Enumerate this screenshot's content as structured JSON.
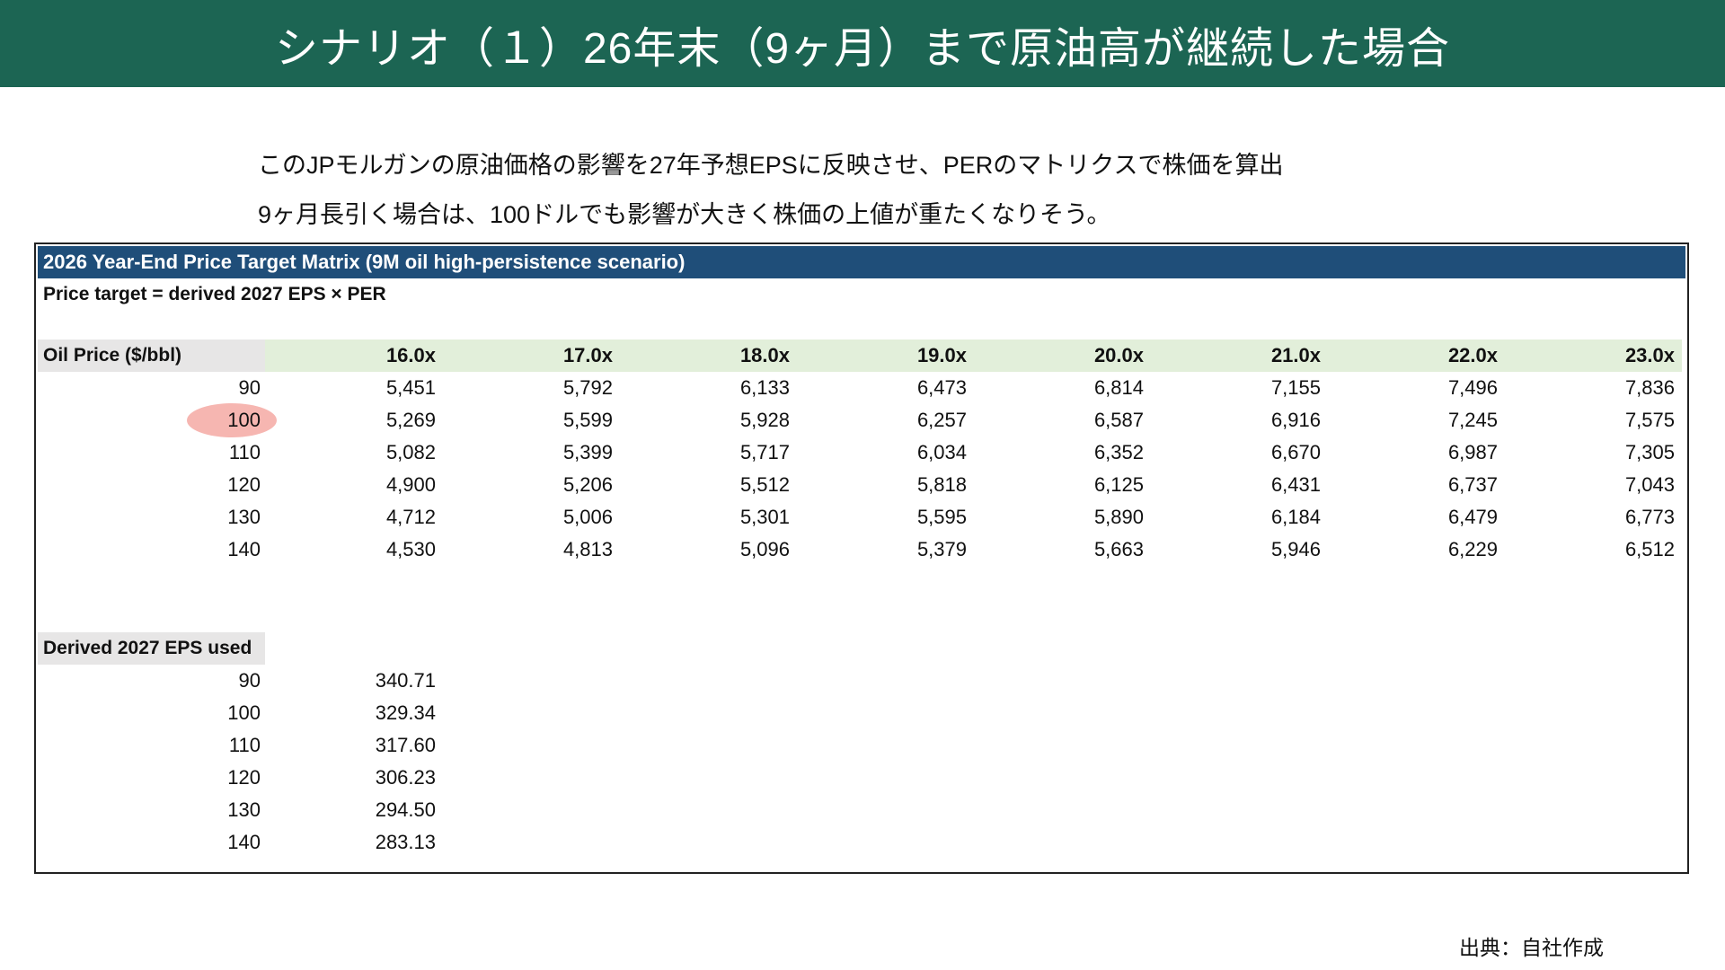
{
  "title": "シナリオ（１）26年末（9ヶ月）まで原油高が継続した場合",
  "description": [
    "このJPモルガンの原油価格の影響を27年予想EPSに反映させ、PERのマトリクスで株価を算出",
    "9ヶ月長引く場合は、100ドルでも影響が大きく株価の上値が重たくなりそう。"
  ],
  "table": {
    "title": "2026 Year-End Price Target Matrix (9M oil high-persistence scenario)",
    "formula": "Price target = derived 2027 EPS × PER",
    "row_header": "Oil Price ($/bbl)",
    "columns": [
      "16.0x",
      "17.0x",
      "18.0x",
      "19.0x",
      "20.0x",
      "21.0x",
      "22.0x",
      "23.0x"
    ],
    "highlighted_oil_price": "100",
    "rows": [
      {
        "oil": "90",
        "values": [
          "5,451",
          "5,792",
          "6,133",
          "6,473",
          "6,814",
          "7,155",
          "7,496",
          "7,836"
        ]
      },
      {
        "oil": "100",
        "values": [
          "5,269",
          "5,599",
          "5,928",
          "6,257",
          "6,587",
          "6,916",
          "7,245",
          "7,575"
        ]
      },
      {
        "oil": "110",
        "values": [
          "5,082",
          "5,399",
          "5,717",
          "6,034",
          "6,352",
          "6,670",
          "6,987",
          "7,305"
        ]
      },
      {
        "oil": "120",
        "values": [
          "4,900",
          "5,206",
          "5,512",
          "5,818",
          "6,125",
          "6,431",
          "6,737",
          "7,043"
        ]
      },
      {
        "oil": "130",
        "values": [
          "4,712",
          "5,006",
          "5,301",
          "5,595",
          "5,890",
          "6,184",
          "6,479",
          "6,773"
        ]
      },
      {
        "oil": "140",
        "values": [
          "4,530",
          "4,813",
          "5,096",
          "5,379",
          "5,663",
          "5,946",
          "6,229",
          "6,512"
        ]
      }
    ],
    "eps_header": "Derived 2027 EPS used",
    "eps_rows": [
      {
        "oil": "90",
        "eps": "340.71"
      },
      {
        "oil": "100",
        "eps": "329.34"
      },
      {
        "oil": "110",
        "eps": "317.60"
      },
      {
        "oil": "120",
        "eps": "306.23"
      },
      {
        "oil": "130",
        "eps": "294.50"
      },
      {
        "oil": "140",
        "eps": "283.13"
      }
    ]
  },
  "colors": {
    "banner": "#1c6553",
    "table_title": "#1f4e79",
    "header_row": "#e2efda",
    "label_cell": "#e7e6e6",
    "highlight": "#f4a9a3"
  },
  "source": "出典：自社作成"
}
